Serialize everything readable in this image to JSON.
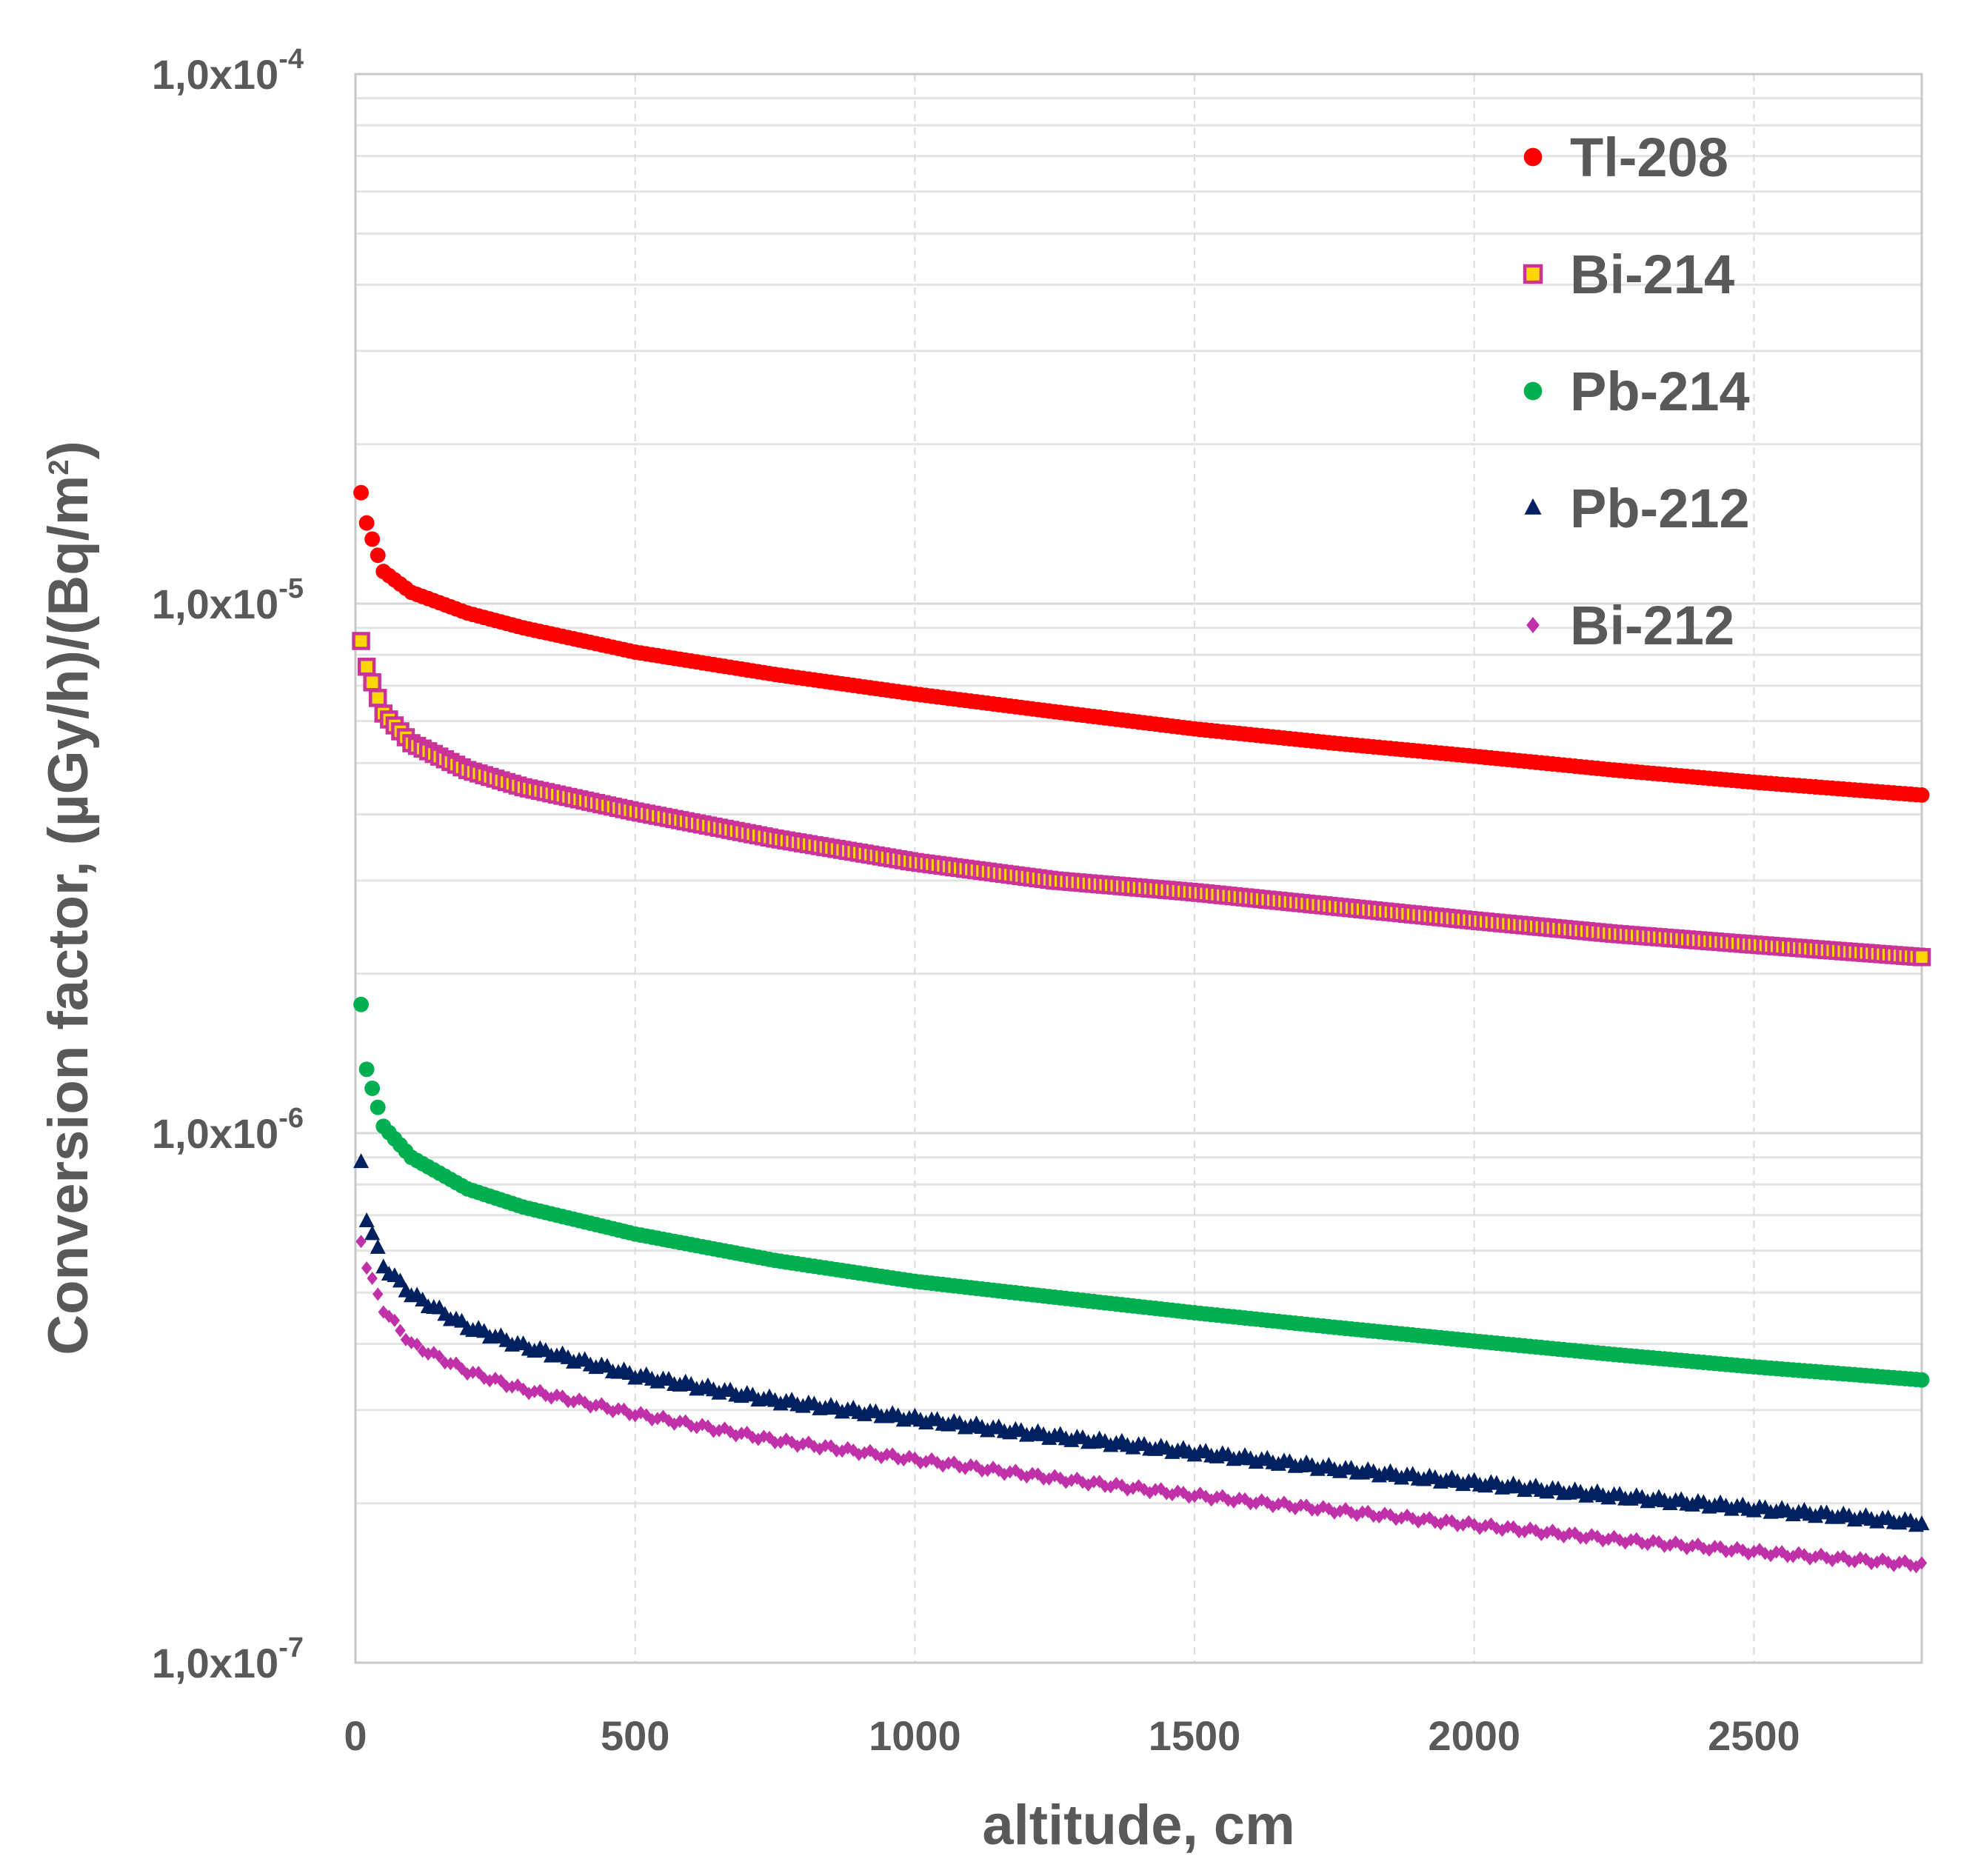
{
  "chart_data": {
    "type": "scatter",
    "title": "",
    "xlabel": "altitude, cm",
    "ylabel": "Conversion factor, (µGy/h)/(Bq/m²)",
    "ylabel_parts": {
      "main": "Conversion factor, (µGy/h)/(Bq/m",
      "sup": "2",
      "end": ")"
    },
    "xscale": "linear",
    "yscale": "log",
    "xlim": [
      0,
      2800
    ],
    "ylim": [
      1e-07,
      0.0001
    ],
    "xticks": [
      0,
      500,
      1000,
      1500,
      2000,
      2500
    ],
    "xtick_labels": [
      "0",
      "500",
      "1000",
      "1500",
      "2000",
      "2500"
    ],
    "yticks": [
      {
        "value": 1e-07,
        "mantissa": "1,0x10",
        "exponent": "-7"
      },
      {
        "value": 1e-06,
        "mantissa": "1,0x10",
        "exponent": "-6"
      },
      {
        "value": 1e-05,
        "mantissa": "1,0x10",
        "exponent": "-5"
      },
      {
        "value": 0.0001,
        "mantissa": "1,0x10",
        "exponent": "-4"
      }
    ],
    "grid": true,
    "legend_position": "top-right",
    "series": [
      {
        "name": "Tl-208",
        "color": "#ff0000",
        "marker": "circle",
        "x": [
          10,
          20,
          50,
          100,
          200,
          300,
          500,
          750,
          1000,
          1250,
          1500,
          1750,
          2000,
          2250,
          2500,
          2800
        ],
        "y": [
          1.62e-05,
          1.42e-05,
          1.15e-05,
          1.05e-05,
          9.6e-06,
          9e-06,
          8.1e-06,
          7.35e-06,
          6.75e-06,
          6.25e-06,
          5.8e-06,
          5.45e-06,
          5.15e-06,
          4.85e-06,
          4.6e-06,
          4.35e-06
        ]
      },
      {
        "name": "Bi-214",
        "color": "#cc3399",
        "fill": "#ffd700",
        "marker": "square",
        "x": [
          10,
          20,
          50,
          100,
          200,
          300,
          500,
          750,
          1000,
          1250,
          1500,
          1750,
          2000,
          2250,
          2500,
          2800
        ],
        "y": [
          8.5e-06,
          7.6e-06,
          6.2e-06,
          5.45e-06,
          4.85e-06,
          4.5e-06,
          4.05e-06,
          3.6e-06,
          3.25e-06,
          3e-06,
          2.85e-06,
          2.68e-06,
          2.52e-06,
          2.38e-06,
          2.27e-06,
          2.15e-06
        ]
      },
      {
        "name": "Pb-214",
        "color": "#00b050",
        "marker": "circle",
        "x": [
          10,
          20,
          50,
          100,
          200,
          300,
          500,
          750,
          1000,
          1250,
          1500,
          1750,
          2000,
          2250,
          2500,
          2800
        ],
        "y": [
          1.75e-06,
          1.32e-06,
          1.03e-06,
          9e-07,
          7.85e-07,
          7.25e-07,
          6.45e-07,
          5.75e-07,
          5.25e-07,
          4.9e-07,
          4.58e-07,
          4.3e-07,
          4.05e-07,
          3.82e-07,
          3.62e-07,
          3.42e-07
        ]
      },
      {
        "name": "Pb-212",
        "color": "#002060",
        "marker": "triangle",
        "x": [
          10,
          20,
          50,
          100,
          200,
          300,
          500,
          750,
          1000,
          1250,
          1500,
          1750,
          2000,
          2250,
          2500,
          2800
        ],
        "y": [
          8.8e-07,
          6.9e-07,
          5.6e-07,
          4.95e-07,
          4.3e-07,
          3.95e-07,
          3.48e-07,
          3.12e-07,
          2.88e-07,
          2.67e-07,
          2.49e-07,
          2.32e-07,
          2.18e-07,
          2.06e-07,
          1.95e-07,
          1.83e-07
        ]
      },
      {
        "name": "Bi-212",
        "color": "#c030a8",
        "marker": "diamond",
        "x": [
          10,
          20,
          50,
          100,
          200,
          300,
          500,
          750,
          1000,
          1250,
          1500,
          1750,
          2000,
          2250,
          2500,
          2800
        ],
        "y": [
          6.3e-07,
          5.6e-07,
          4.65e-07,
          4e-07,
          3.55e-07,
          3.28e-07,
          2.95e-07,
          2.63e-07,
          2.42e-07,
          2.23e-07,
          2.07e-07,
          1.94e-07,
          1.82e-07,
          1.71e-07,
          1.62e-07,
          1.53e-07
        ]
      }
    ]
  }
}
